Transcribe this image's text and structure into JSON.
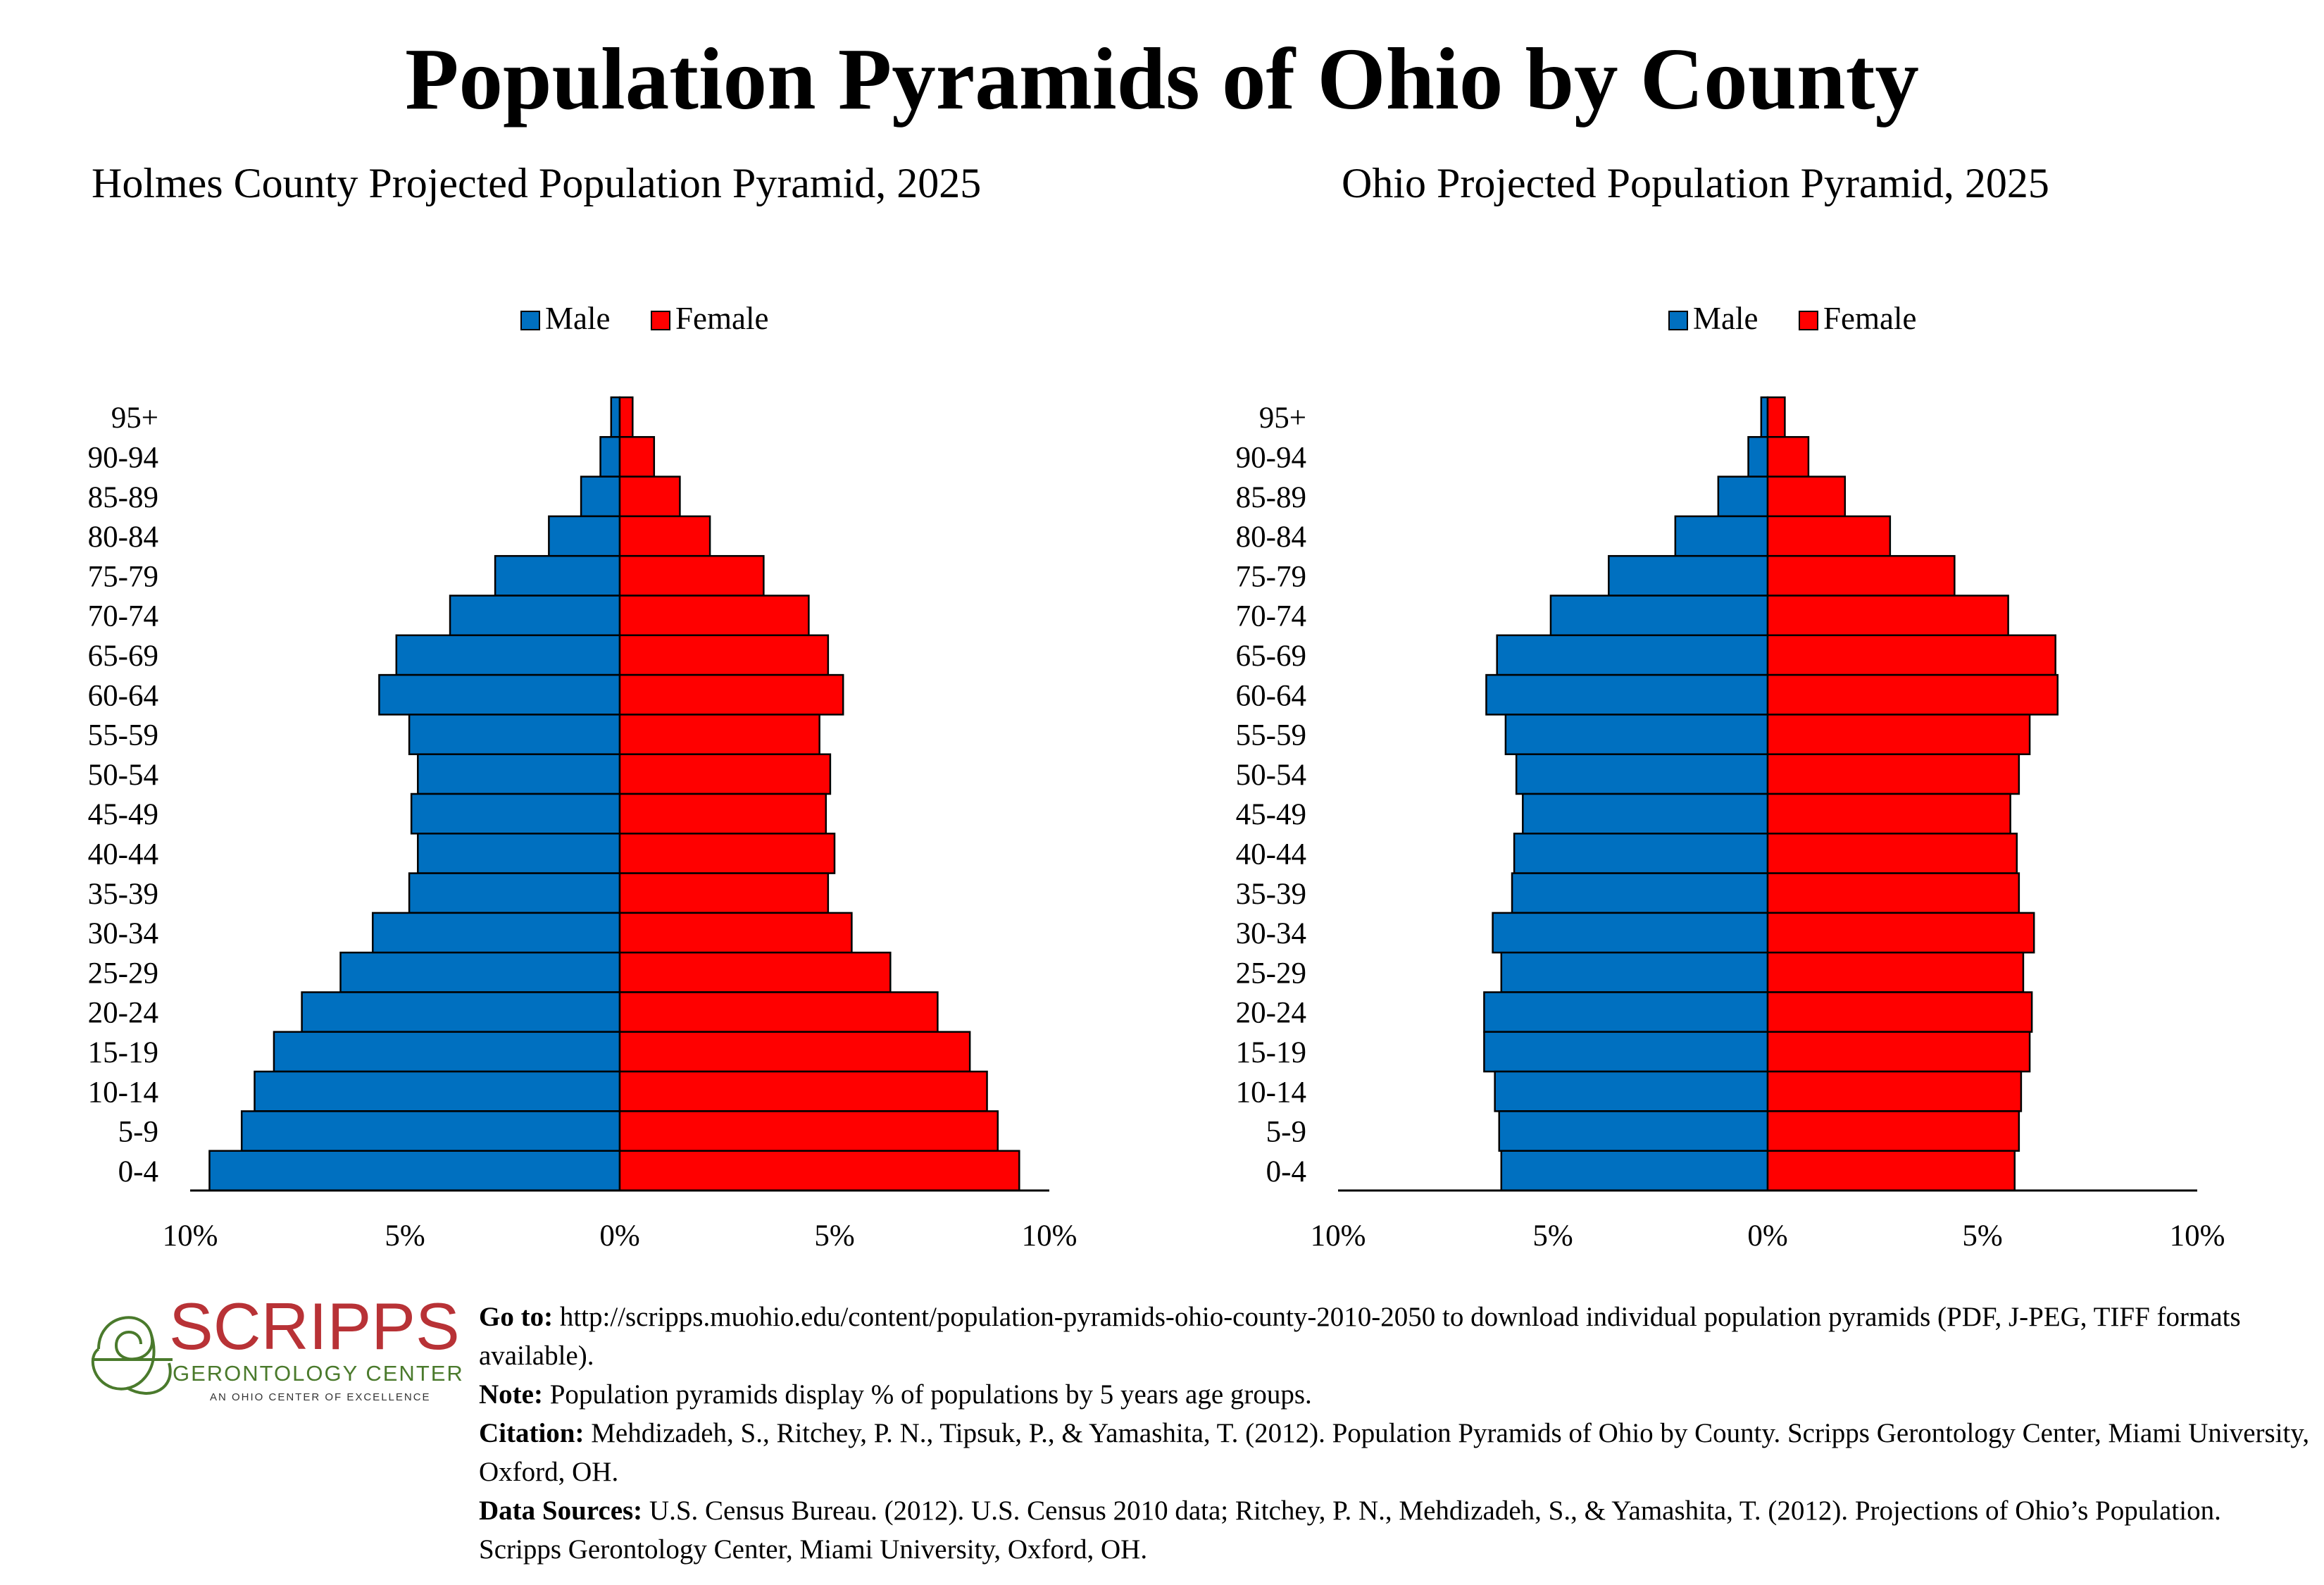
{
  "title": "Population Pyramids of Ohio by County",
  "chart_data": [
    {
      "type": "bar",
      "title": "Holmes County Projected Population Pyramid, 2025",
      "categories": [
        "95+",
        "90-94",
        "85-89",
        "80-84",
        "75-79",
        "70-74",
        "65-69",
        "60-64",
        "55-59",
        "50-54",
        "45-49",
        "40-44",
        "35-39",
        "30-34",
        "25-29",
        "20-24",
        "15-19",
        "10-14",
        "5-9",
        "0-4"
      ],
      "series": [
        {
          "name": "Male",
          "color": "#0070c0",
          "values": [
            0.2,
            0.45,
            0.9,
            1.65,
            2.9,
            3.95,
            5.2,
            5.6,
            4.9,
            4.7,
            4.85,
            4.7,
            4.9,
            5.75,
            6.5,
            7.4,
            8.05,
            8.5,
            8.8,
            9.55
          ]
        },
        {
          "name": "Female",
          "color": "#ff0000",
          "values": [
            0.3,
            0.8,
            1.4,
            2.1,
            3.35,
            4.4,
            4.85,
            5.2,
            4.65,
            4.9,
            4.8,
            5.0,
            4.85,
            5.4,
            6.3,
            7.4,
            8.15,
            8.55,
            8.8,
            9.3
          ]
        }
      ],
      "xlim": [
        -10,
        10
      ],
      "xticks": [
        "10%",
        "5%",
        "0%",
        "5%",
        "10%"
      ],
      "legend": "top-center"
    },
    {
      "type": "bar",
      "title": "Ohio Projected Population Pyramid, 2025",
      "categories": [
        "95+",
        "90-94",
        "85-89",
        "80-84",
        "75-79",
        "70-74",
        "65-69",
        "60-64",
        "55-59",
        "50-54",
        "45-49",
        "40-44",
        "35-39",
        "30-34",
        "25-29",
        "20-24",
        "15-19",
        "10-14",
        "5-9",
        "0-4"
      ],
      "series": [
        {
          "name": "Male",
          "color": "#0070c0",
          "values": [
            0.15,
            0.45,
            1.15,
            2.15,
            3.7,
            5.05,
            6.3,
            6.55,
            6.1,
            5.85,
            5.7,
            5.9,
            5.95,
            6.4,
            6.2,
            6.6,
            6.6,
            6.35,
            6.25,
            6.2
          ]
        },
        {
          "name": "Female",
          "color": "#ff0000",
          "values": [
            0.4,
            0.95,
            1.8,
            2.85,
            4.35,
            5.6,
            6.7,
            6.75,
            6.1,
            5.85,
            5.65,
            5.8,
            5.85,
            6.2,
            5.95,
            6.15,
            6.1,
            5.9,
            5.85,
            5.75
          ]
        }
      ],
      "xlim": [
        -10,
        10
      ],
      "xticks": [
        "10%",
        "5%",
        "0%",
        "5%",
        "10%"
      ],
      "legend": "top-center"
    }
  ],
  "logo": {
    "name": "SCRIPPS",
    "subtitle": "GERONTOLOGY CENTER",
    "tagline": "AN OHIO CENTER OF EXCELLENCE"
  },
  "notes": {
    "goto_label": "Go to:",
    "goto_text": " http://scripps.muohio.edu/content/population-pyramids-ohio-county-2010-2050 to download individual population pyramids (PDF, J-PEG, TIFF formats available).",
    "note_label": "Note:",
    "note_text": " Population pyramids display % of populations by 5 years age groups.",
    "citation_label": "Citation:",
    "citation_text": " Mehdizadeh, S., Ritchey, P. N., Tipsuk, P., & Yamashita, T. (2012). Population Pyramids of Ohio by County. Scripps Gerontology Center, Miami University, Oxford, OH.",
    "sources_label": "Data Sources:",
    "sources_text": " U.S. Census Bureau. (2012). U.S. Census 2010 data; Ritchey, P. N., Mehdizadeh, S., & Yamashita, T. (2012). Projections of Ohio’s Population. Scripps Gerontology Center, Miami University, Oxford, OH."
  }
}
